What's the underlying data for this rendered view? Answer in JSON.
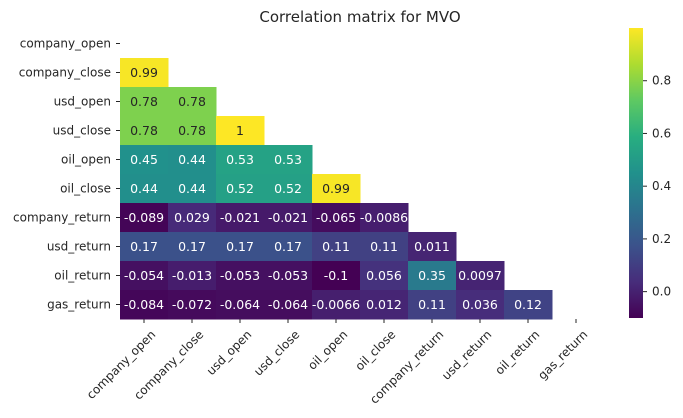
{
  "chart_data": {
    "type": "heatmap",
    "title": "Correlation matrix for MVO",
    "variables": [
      "company_open",
      "company_close",
      "usd_open",
      "usd_close",
      "oil_open",
      "oil_close",
      "company_return",
      "usd_return",
      "oil_return",
      "gas_return"
    ],
    "matrix": [
      [],
      [
        "0.99"
      ],
      [
        "0.78",
        "0.78"
      ],
      [
        "0.78",
        "0.78",
        "1"
      ],
      [
        "0.45",
        "0.44",
        "0.53",
        "0.53"
      ],
      [
        "0.44",
        "0.44",
        "0.52",
        "0.52",
        "0.99"
      ],
      [
        "-0.089",
        "0.029",
        "-0.021",
        "-0.021",
        "-0.065",
        "-0.0086"
      ],
      [
        "0.17",
        "0.17",
        "0.17",
        "0.17",
        "0.11",
        "0.11",
        "0.011"
      ],
      [
        "-0.054",
        "-0.013",
        "-0.053",
        "-0.053",
        "-0.1",
        "0.056",
        "0.35",
        "0.0097"
      ],
      [
        "-0.084",
        "-0.072",
        "-0.064",
        "-0.064",
        "-0.0066",
        "0.012",
        "0.11",
        "0.036",
        "0.12"
      ]
    ],
    "masked": "upper-triangle-including-diagonal",
    "colormap": "viridis",
    "vmin": -0.1,
    "vmax": 1.0,
    "colorbar_ticks": [
      "0.0",
      "0.2",
      "0.4",
      "0.6",
      "0.8"
    ],
    "colorbar_tick_values": [
      0.0,
      0.2,
      0.4,
      0.6,
      0.8
    ],
    "xlabel": "",
    "ylabel": ""
  }
}
